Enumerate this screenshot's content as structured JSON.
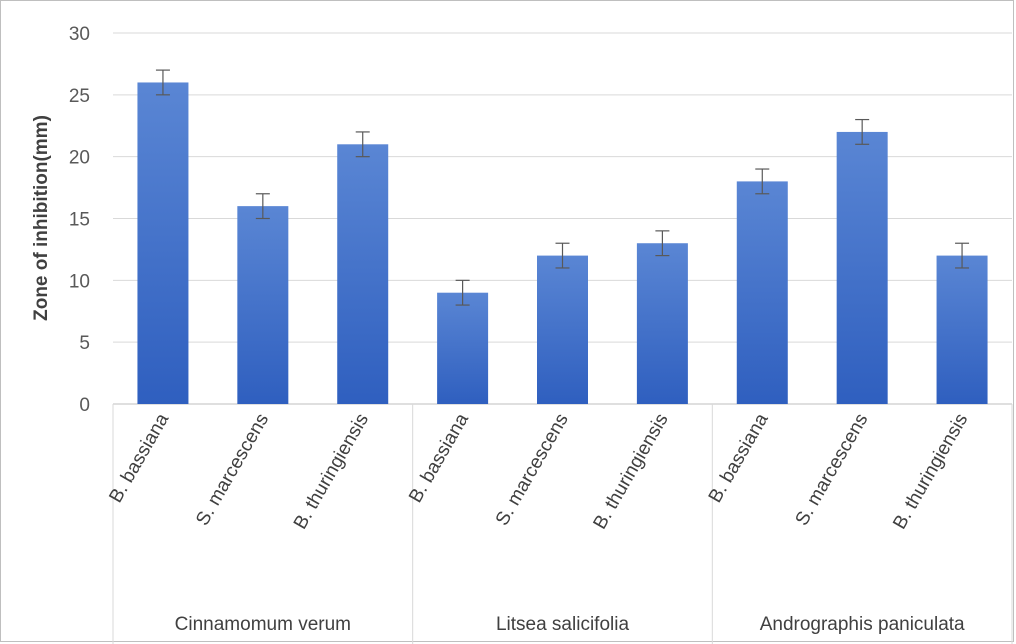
{
  "chart_data": {
    "type": "bar",
    "title": "",
    "ylabel": "Zone of inhibition(mm)",
    "xlabel": "",
    "ylim": [
      0,
      30
    ],
    "yticks": [
      0,
      5,
      10,
      15,
      20,
      25,
      30
    ],
    "grid": true,
    "legend": "none",
    "bar_color_top": "#5a86d4",
    "bar_color_bottom": "#2f5fbf",
    "groups": [
      {
        "name": "Cinnamomum verum",
        "categories": [
          "B. bassiana",
          "S. marcescens",
          "B. thuringiensis"
        ],
        "values": [
          26,
          16,
          21
        ],
        "errors": [
          1,
          1,
          1
        ]
      },
      {
        "name": "Litsea salicifolia",
        "categories": [
          "B. bassiana",
          "S. marcescens",
          "B. thuringiensis"
        ],
        "values": [
          9,
          12,
          13
        ],
        "errors": [
          1,
          1,
          1
        ]
      },
      {
        "name": "Andrographis paniculata",
        "categories": [
          "B. bassiana",
          "S. marcescens",
          "B. thuringiensis"
        ],
        "values": [
          18,
          22,
          12
        ],
        "errors": [
          1,
          1,
          1
        ]
      }
    ]
  }
}
